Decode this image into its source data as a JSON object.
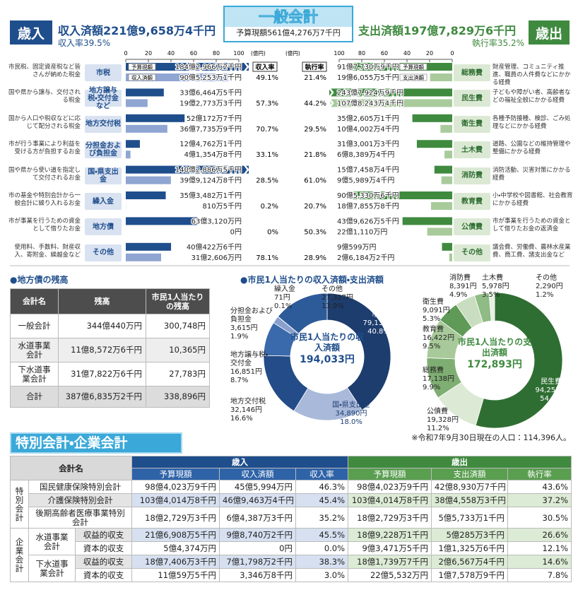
{
  "header": {
    "revenue_label": "歳入",
    "revenue_total": "収入済額221億9,658万4千円",
    "revenue_rate": "収入率39.5%",
    "title": "一般会計",
    "budget_total": "予算現額561億4,276万7千円",
    "expenditure_total": "支出済額197億7,829万6千円",
    "expenditure_rate": "執行率35.2%",
    "expenditure_label": "歳出"
  },
  "revenue": {
    "axis_unit": "(億円)",
    "xlim": [
      0,
      100
    ],
    "xticks": [
      0,
      20,
      40,
      60,
      80,
      100
    ],
    "rate_header": "収入率",
    "budget_tag": "予算現額",
    "actual_tag": "収入済額",
    "color_budget": "#1f4e8c",
    "color_actual": "#8fa5d2",
    "items": [
      {
        "name": "市税",
        "description": "市民税、固定資産税など皆さんが納めた税金",
        "budget": 184.29662,
        "budget_label": "184億2,966万2千円",
        "actual": 90.52531,
        "actual_label": "90億5,253万1千円",
        "rate_label": "49.1%"
      },
      {
        "name": "地方譲与税・交付金など",
        "description": "国や県から譲与、交付される税金",
        "budget": 33.64645,
        "budget_label": "33億6,464万5千円",
        "actual": 19.27733,
        "actual_label": "19億2,773万3千円",
        "rate_label": "57.3%"
      },
      {
        "name": "地方交付税",
        "description": "国から人口や税収などに応じて配分される税金",
        "budget": 52.01727,
        "budget_label": "52億172万7千円",
        "actual": 36.77359,
        "actual_label": "36億7,735万9千円",
        "rate_label": "70.7%"
      },
      {
        "name": "分担金および負担金",
        "description": "市が行う事業により利益を受ける方が負担するお金",
        "budget": 12.47621,
        "budget_label": "12億4,762万1千円",
        "actual": 4.13548,
        "actual_label": "4億1,354万8千円",
        "rate_label": "33.1%"
      },
      {
        "name": "国・県支出金",
        "description": "国や県から使い道を指定して交付されるお金",
        "budget": 140.28865,
        "budget_label": "140億2,886万5千円",
        "actual": 39.91248,
        "actual_label": "39億9,124万8千円",
        "rate_label": "28.5%"
      },
      {
        "name": "繰入金",
        "description": "市の基金や特別会計から一般会計に繰り入れるお金",
        "budget": 35.34821,
        "budget_label": "35億3,482万1千円",
        "actual": 0.08105,
        "actual_label": "810万5千円",
        "rate_label": "0.2%"
      },
      {
        "name": "地方債",
        "description": "市が事業を行うための資金として借りたお金",
        "budget": 63.312,
        "budget_label": "63億3,120万円",
        "actual": 0,
        "actual_label": "0円",
        "rate_label": "0%"
      },
      {
        "name": "その他",
        "description": "使用料、手数料、財産収入、寄附金、繰越金など",
        "budget": 40.04226,
        "budget_label": "40億422万6千円",
        "actual": 31.2606,
        "actual_label": "31億2,606万円",
        "rate_label": "78.1%"
      }
    ]
  },
  "expenditure": {
    "axis_unit": "(億円)",
    "xlim": [
      0,
      100
    ],
    "xticks": [
      100,
      80,
      60,
      40,
      20,
      0
    ],
    "rate_header": "執行率",
    "budget_tag": "予算現額",
    "actual_tag": "支出済額",
    "color_budget": "#3f8a3f",
    "color_actual": "#a9cb9c",
    "items": [
      {
        "name": "総務費",
        "description": "財産管理、コミュニティ推進、職員の人件費などにかかる経費",
        "budget": 91.77309,
        "budget_label": "91億7,730万9千円",
        "actual": 19.60555,
        "actual_label": "19億6,055万5千円",
        "rate_label": "21.4%"
      },
      {
        "name": "民生費",
        "description": "子どもや障がい者、高齢者などの福祉全般にかかる経費",
        "budget": 243.79249,
        "budget_label": "243億7,924万9千円",
        "actual": 107.82434,
        "actual_label": "107億8,243万4千円",
        "rate_label": "44.2%"
      },
      {
        "name": "衛生費",
        "description": "各種予防接種、検診、ごみ処理などにかかる経費",
        "budget": 35.26051,
        "budget_label": "35億2,605万1千円",
        "actual": 10.40024,
        "actual_label": "10億4,002万4千円",
        "rate_label": "29.5%"
      },
      {
        "name": "土木費",
        "description": "道路、公園などの維持管理や整備にかかる経費",
        "budget": 31.30013,
        "budget_label": "31億3,001万3千円",
        "actual": 6.83894,
        "actual_label": "6億8,389万4千円",
        "rate_label": "21.8%"
      },
      {
        "name": "消防費",
        "description": "消防活動、災害対策にかかる経費",
        "budget": 15.74584,
        "budget_label": "15億7,458万4千円",
        "actual": 9.59894,
        "actual_label": "9億5,989万4千円",
        "rate_label": "61.0%"
      },
      {
        "name": "教育費",
        "description": "小・中学校や図書館、社会教育にかかる経費",
        "budget": 90.53306,
        "budget_label": "90億5,330万6千円",
        "actual": 18.78558,
        "actual_label": "18億7,855万8千円",
        "rate_label": "20.7%"
      },
      {
        "name": "公債費",
        "description": "市が事業を行うための資金として借りたお金の返済金",
        "budget": 43.96265,
        "budget_label": "43億9,626万5千円",
        "actual": 22.111,
        "actual_label": "22億1,110万円",
        "rate_label": "50.3%"
      },
      {
        "name": "その他",
        "description": "議会費、労働費、農林水産業費、商工費、諸支出金など",
        "budget": 9.0599,
        "budget_label": "9億599万円",
        "actual": 2.61842,
        "actual_label": "2億6,184万2千円",
        "rate_label": "28.9%"
      }
    ]
  },
  "debt": {
    "title": "●地方債の残高",
    "headers": [
      "会計名",
      "残高",
      "市民1人当たりの残高"
    ],
    "rows": [
      [
        "一般会計",
        "344億440万円",
        "300,748円"
      ],
      [
        "水道事業会計",
        "11億8,572万6千円",
        "10,365円"
      ],
      [
        "下水道事業会計",
        "31億7,822万6千円",
        "27,783円"
      ],
      [
        "合計",
        "387億6,835万2千円",
        "338,896円"
      ]
    ]
  },
  "per_capita": {
    "title": "●市民1人当たりの収入済額・支出済額",
    "revenue": {
      "center_label": "市民1人当たりの収入済額",
      "total": "194,033円",
      "segments": [
        {
          "name": "市税",
          "value": 79138,
          "value_label": "79,138円",
          "percent_label": "40.8%",
          "color": "#1d3d6e"
        },
        {
          "name": "国・県支出金",
          "value": 34890,
          "value_label": "34,890円",
          "percent_label": "18.0%",
          "color": "#a9b9d9"
        },
        {
          "name": "地方交付税",
          "value": 32146,
          "value_label": "32,146円",
          "percent_label": "16.6%",
          "color": "#234c88"
        },
        {
          "name": "地方譲与税・交付金",
          "value": 16851,
          "value_label": "16,851円",
          "percent_label": "8.7%",
          "color": "#3a6aab"
        },
        {
          "name": "分担金および負担金",
          "value": 3615,
          "value_label": "3,615円",
          "percent_label": "1.9%",
          "color": "#8aa0cc"
        },
        {
          "name": "繰入金",
          "value": 71,
          "value_label": "71円",
          "percent_label": "0.1%",
          "color": "#c5d0e6"
        },
        {
          "name": "その他",
          "value": 27327,
          "value_label": "27,327円",
          "percent_label": "13.9%",
          "color": "#2d5b99"
        }
      ]
    },
    "expenditure": {
      "center_label": "市民1人当たりの支出済額",
      "total": "172,893円",
      "segments": [
        {
          "name": "民生費",
          "value": 94255,
          "value_label": "94,255円",
          "percent_label": "54.5%",
          "color": "#2f6e32"
        },
        {
          "name": "公債費",
          "value": 19328,
          "value_label": "19,328円",
          "percent_label": "11.2%",
          "color": "#dce9d4"
        },
        {
          "name": "総務費",
          "value": 17138,
          "value_label": "17,138円",
          "percent_label": "9.9%",
          "color": "#7fae72"
        },
        {
          "name": "教育費",
          "value": 16422,
          "value_label": "16,422円",
          "percent_label": "9.5%",
          "color": "#a8c99a"
        },
        {
          "name": "衛生費",
          "value": 9091,
          "value_label": "9,091円",
          "percent_label": "5.3%",
          "color": "#5f9a57"
        },
        {
          "name": "消防費",
          "value": 8391,
          "value_label": "8,391円",
          "percent_label": "4.9%",
          "color": "#c9dec0"
        },
        {
          "name": "土木費",
          "value": 5978,
          "value_label": "5,978円",
          "percent_label": "3.5%",
          "color": "#8fbb84"
        },
        {
          "name": "その他",
          "value": 2290,
          "value_label": "2,290円",
          "percent_label": "1.2%",
          "color": "#e6efe1"
        }
      ]
    },
    "note": "※令和7年9月30日現在の人口：114,396人。"
  },
  "special": {
    "title": "特別会計・企業会計",
    "name_header": "会計名",
    "revenue_header": "歳入",
    "expenditure_header": "歳出",
    "columns": [
      "予算現額",
      "収入済額",
      "収入率",
      "予算現額",
      "支出済額",
      "執行率"
    ],
    "groups": [
      {
        "label": "特別会計",
        "rows": [
          {
            "name": "国民健康保険特別会計",
            "cells": [
              "98億4,023万9千円",
              "45億5,994万円",
              "46.3%",
              "98億4,023万9千円",
              "42億8,930万7千円",
              "43.6%"
            ]
          },
          {
            "name": "介護保険特別会計",
            "cells": [
              "103億4,014万8千円",
              "46億9,463万4千円",
              "45.4%",
              "103億4,014万8千円",
              "38億4,558万3千円",
              "37.2%"
            ]
          },
          {
            "name": "後期高齢者医療事業特別会計",
            "cells": [
              "18億2,729万3千円",
              "6億4,387万3千円",
              "35.2%",
              "18億2,729万3千円",
              "5億5,733万1千円",
              "30.5%"
            ]
          }
        ]
      },
      {
        "label": "企業会計",
        "rows": [
          {
            "name": "水道事業会計",
            "subrows": [
              {
                "name": "収益的収支",
                "cells": [
                  "21億6,908万5千円",
                  "9億8,740万2千円",
                  "45.5%",
                  "18億9,228万1千円",
                  "5億285万3千円",
                  "26.6%"
                ]
              },
              {
                "name": "資本的収支",
                "cells": [
                  "5億4,374万円",
                  "0円",
                  "0.0%",
                  "9億3,471万5千円",
                  "1億1,325万6千円",
                  "12.1%"
                ]
              }
            ]
          },
          {
            "name": "下水道事業会計",
            "subrows": [
              {
                "name": "収益的収支",
                "cells": [
                  "18億7,406万3千円",
                  "7億1,798万2千円",
                  "38.3%",
                  "18億1,739万7千円",
                  "2億6,567万4千円",
                  "14.6%"
                ]
              },
              {
                "name": "資本的収支",
                "cells": [
                  "11億59万5千円",
                  "3,346万8千円",
                  "3.0%",
                  "22億5,532万円",
                  "1億7,578万9千円",
                  "7.8%"
                ]
              }
            ]
          }
        ]
      }
    ]
  }
}
